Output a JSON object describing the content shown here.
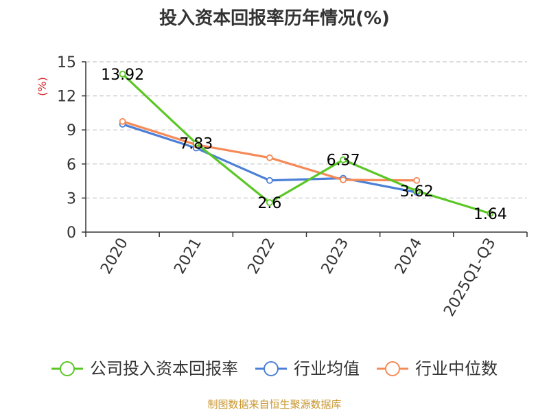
{
  "title": "投入资本回报率历年情况(%)",
  "source": "制图数据来自恒生聚源数据库",
  "chart_data": {
    "type": "line",
    "title": "投入资本回报率历年情况(%)",
    "ylabel": "(%)",
    "xlabel": "",
    "categories": [
      "2020",
      "2021",
      "2022",
      "2023",
      "2024",
      "2025Q1-Q3"
    ],
    "yticks": [
      0,
      3,
      6,
      9,
      12,
      15
    ],
    "ylim": [
      0,
      15
    ],
    "grid": "horizontal dashed",
    "legend_position": "bottom",
    "series": [
      {
        "name": "公司投入资本回报率",
        "color": "#5ac725",
        "values": [
          13.92,
          7.83,
          2.6,
          6.37,
          3.62,
          1.64
        ],
        "labels": [
          "13.92",
          "7.83",
          "2.6",
          "6.37",
          "3.62",
          "1.64"
        ]
      },
      {
        "name": "行业均值",
        "color": "#4c80d6",
        "values": [
          9.5,
          7.4,
          4.55,
          4.75,
          3.5,
          null
        ]
      },
      {
        "name": "行业中位数",
        "color": "#f58a57",
        "values": [
          9.75,
          7.7,
          6.55,
          4.6,
          4.55,
          null
        ]
      }
    ]
  }
}
